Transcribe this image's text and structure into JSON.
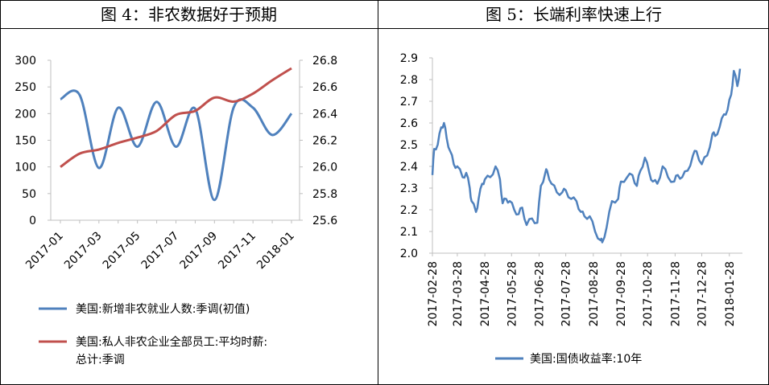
{
  "panels": {
    "left_title": "图 4：非农数据好于预期",
    "right_title": "图 5：长端利率快速上行"
  },
  "colors": {
    "blue": "#4F81BD",
    "red": "#C0504D",
    "axis": "#BFBFBF",
    "text": "#000000"
  },
  "chart_data": [
    {
      "type": "line",
      "title": "图 4：非农数据好于预期",
      "x": [
        "2017-01",
        "2017-02",
        "2017-03",
        "2017-04",
        "2017-05",
        "2017-06",
        "2017-07",
        "2017-08",
        "2017-09",
        "2017-10",
        "2017-11",
        "2017-12",
        "2018-01"
      ],
      "x_tick_labels": [
        "2017-01",
        "2017-03",
        "2017-05",
        "2017-07",
        "2017-09",
        "2017-11",
        "2018-01"
      ],
      "series": [
        {
          "name": "美国:新增非农就业人数:季调(初值)",
          "axis": "left",
          "color": "#4F81BD",
          "values": [
            227,
            235,
            98,
            211,
            138,
            222,
            138,
            209,
            38,
            212,
            211,
            160,
            200
          ]
        },
        {
          "name": "美国:私人非农企业全部员工:平均时薪:总计:季调",
          "axis": "right",
          "color": "#C0504D",
          "values": [
            26.0,
            26.1,
            26.13,
            26.18,
            26.22,
            26.27,
            26.39,
            26.42,
            26.52,
            26.49,
            26.55,
            26.65,
            26.74
          ]
        }
      ],
      "ylim_left": [
        0,
        300
      ],
      "yticks_left": [
        "300",
        "250",
        "200",
        "150",
        "100",
        "50",
        "0"
      ],
      "ylim_right": [
        25.6,
        26.8
      ],
      "yticks_right": [
        "26.8",
        "26.6",
        "26.4",
        "26.2",
        "26.0",
        "25.8",
        "25.6"
      ],
      "legend_position": "bottom",
      "grid": false
    },
    {
      "type": "line",
      "title": "图 5：长端利率快速上行",
      "x_tick_labels": [
        "2017-02-28",
        "2017-03-28",
        "2017-04-28",
        "2017-05-28",
        "2017-06-28",
        "2017-07-28",
        "2017-08-28",
        "2017-09-28",
        "2017-10-28",
        "2017-11-28",
        "2017-12-28",
        "2018-01-28"
      ],
      "series": [
        {
          "name": "美国:国债收益率:10年",
          "color": "#4F81BD",
          "x": [
            "2017-02-28",
            "2017-03-02",
            "2017-03-06",
            "2017-03-10",
            "2017-03-13",
            "2017-03-16",
            "2017-03-20",
            "2017-03-24",
            "2017-03-28",
            "2017-04-03",
            "2017-04-07",
            "2017-04-11",
            "2017-04-13",
            "2017-04-18",
            "2017-04-21",
            "2017-04-25",
            "2017-04-28",
            "2017-05-04",
            "2017-05-10",
            "2017-05-15",
            "2017-05-18",
            "2017-05-22",
            "2017-05-26",
            "2017-05-31",
            "2017-06-05",
            "2017-06-09",
            "2017-06-14",
            "2017-06-20",
            "2017-06-26",
            "2017-06-30",
            "2017-07-05",
            "2017-07-07",
            "2017-07-12",
            "2017-07-18",
            "2017-07-24",
            "2017-07-28",
            "2017-08-03",
            "2017-08-09",
            "2017-08-14",
            "2017-08-18",
            "2017-08-24",
            "2017-08-30",
            "2017-09-05",
            "2017-09-07",
            "2017-09-12",
            "2017-09-18",
            "2017-09-25",
            "2017-09-28",
            "2017-10-05",
            "2017-10-11",
            "2017-10-16",
            "2017-10-20",
            "2017-10-25",
            "2017-10-30",
            "2017-11-03",
            "2017-11-08",
            "2017-11-14",
            "2017-11-20",
            "2017-11-27",
            "2017-12-01",
            "2017-12-06",
            "2017-12-12",
            "2017-12-18",
            "2017-12-22",
            "2017-12-28",
            "2018-01-03",
            "2018-01-09",
            "2018-01-12",
            "2018-01-17",
            "2018-01-22",
            "2018-01-26",
            "2018-01-30",
            "2018-02-02",
            "2018-02-06",
            "2018-02-09"
          ],
          "values": [
            2.36,
            2.48,
            2.5,
            2.58,
            2.6,
            2.53,
            2.47,
            2.41,
            2.4,
            2.35,
            2.37,
            2.3,
            2.24,
            2.19,
            2.25,
            2.32,
            2.34,
            2.35,
            2.4,
            2.34,
            2.23,
            2.25,
            2.24,
            2.2,
            2.18,
            2.21,
            2.13,
            2.16,
            2.14,
            2.31,
            2.37,
            2.38,
            2.32,
            2.28,
            2.28,
            2.29,
            2.25,
            2.24,
            2.19,
            2.17,
            2.17,
            2.1,
            2.06,
            2.05,
            2.12,
            2.24,
            2.25,
            2.33,
            2.35,
            2.36,
            2.31,
            2.38,
            2.44,
            2.37,
            2.33,
            2.32,
            2.4,
            2.35,
            2.33,
            2.36,
            2.35,
            2.38,
            2.45,
            2.47,
            2.41,
            2.45,
            2.55,
            2.54,
            2.58,
            2.64,
            2.66,
            2.73,
            2.84,
            2.77,
            2.85
          ]
        }
      ],
      "ylim": [
        2.0,
        2.9
      ],
      "yticks": [
        "2.9",
        "2.8",
        "2.7",
        "2.6",
        "2.5",
        "2.4",
        "2.3",
        "2.2",
        "2.1",
        "2.0"
      ],
      "legend_position": "bottom",
      "grid": false
    }
  ]
}
